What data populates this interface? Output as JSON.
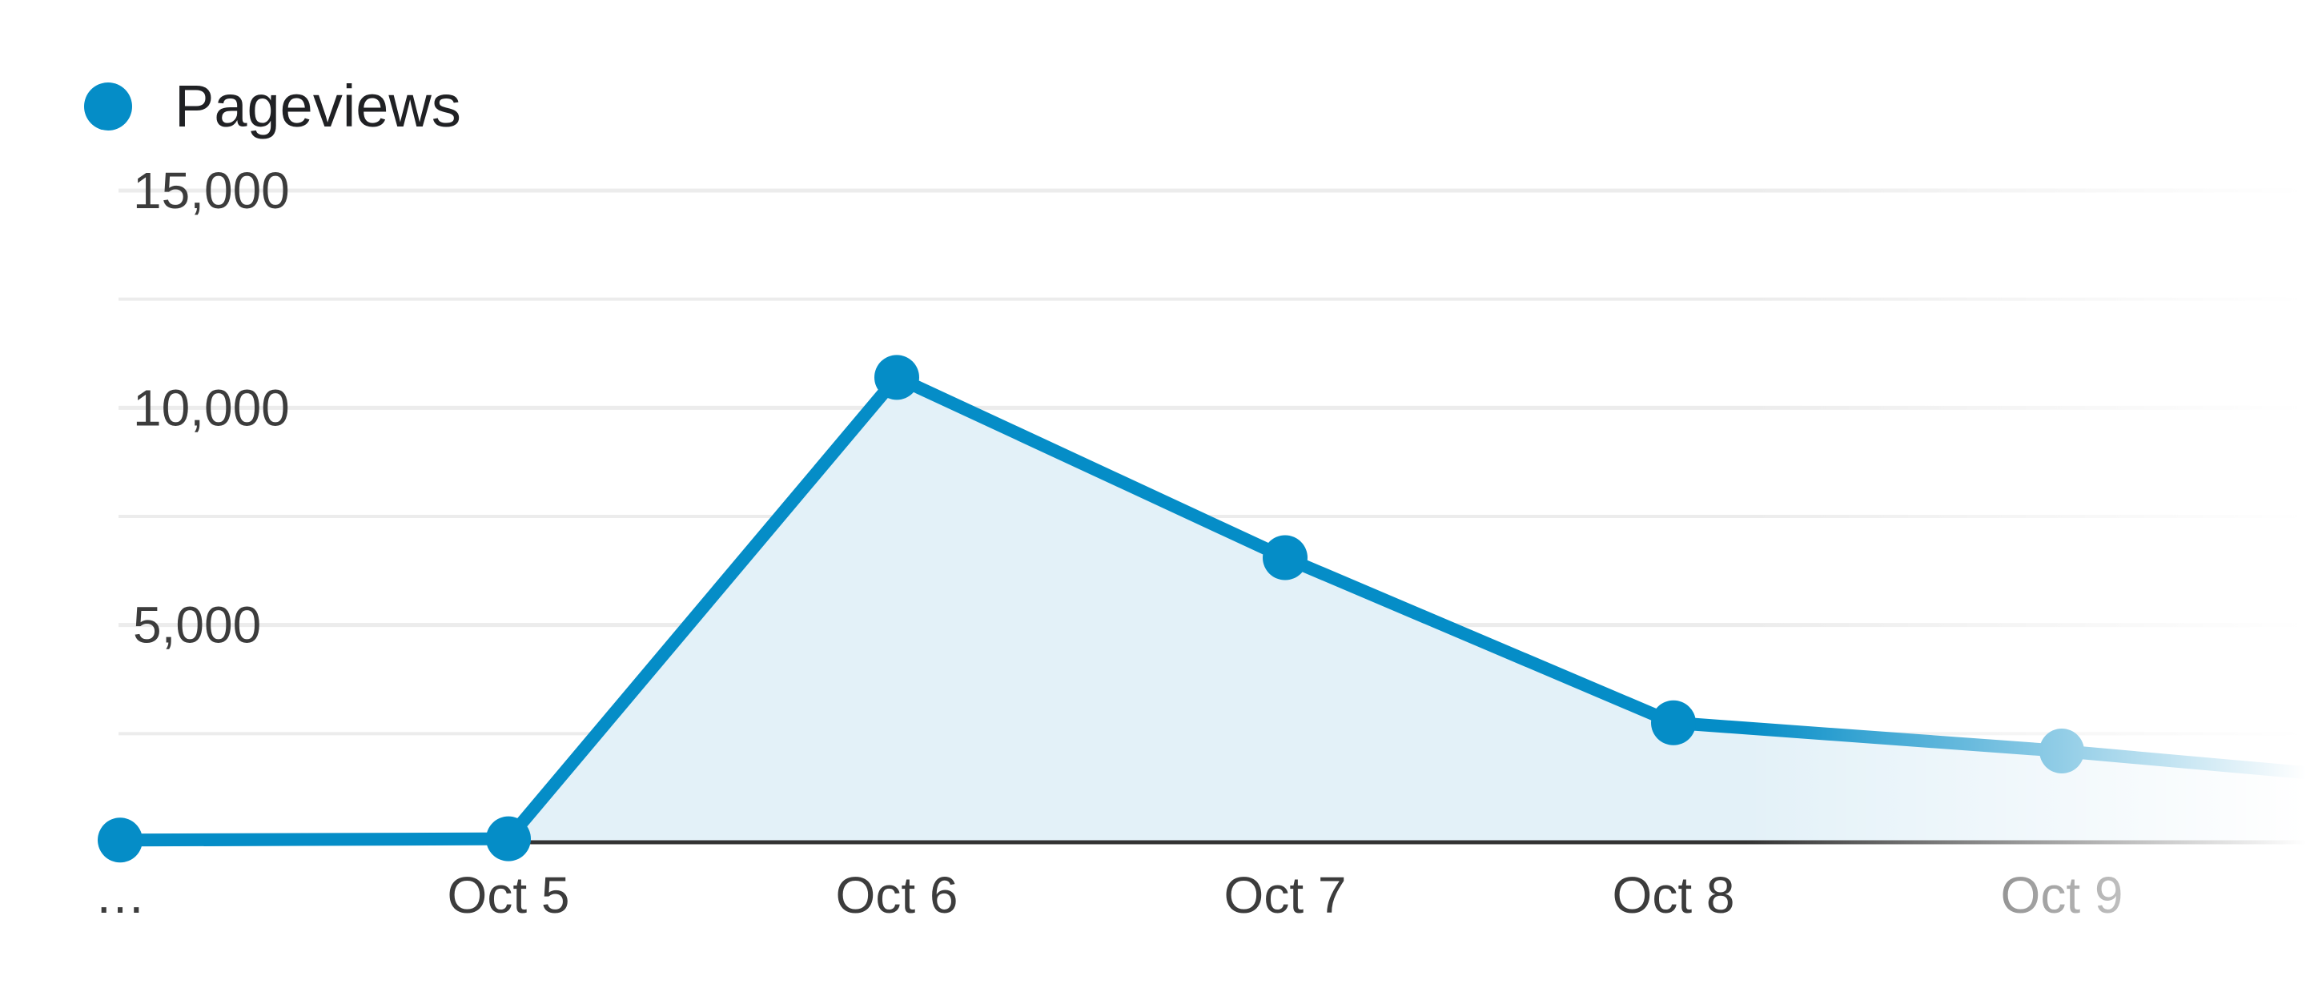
{
  "chart_data": {
    "type": "area",
    "legend": {
      "label": "Pageviews",
      "position": "top-left"
    },
    "x": [
      "…",
      "Oct 5",
      "Oct 6",
      "Oct 7",
      "Oct 8",
      "Oct 9"
    ],
    "series": [
      {
        "name": "Pageviews",
        "values": [
          50,
          80,
          10700,
          6550,
          2750,
          2100
        ],
        "color": "#058dc7"
      }
    ],
    "trailing_value": 1600,
    "ylim": [
      0,
      15000
    ],
    "yticks": [
      {
        "value": 5000,
        "label": "5,000"
      },
      {
        "value": 10000,
        "label": "10,000"
      },
      {
        "value": 15000,
        "label": "15,000"
      }
    ],
    "gridlines": true,
    "fill_color": "#e3f1f8",
    "grid_color": "#ececec",
    "baseline_color": "#333333"
  }
}
